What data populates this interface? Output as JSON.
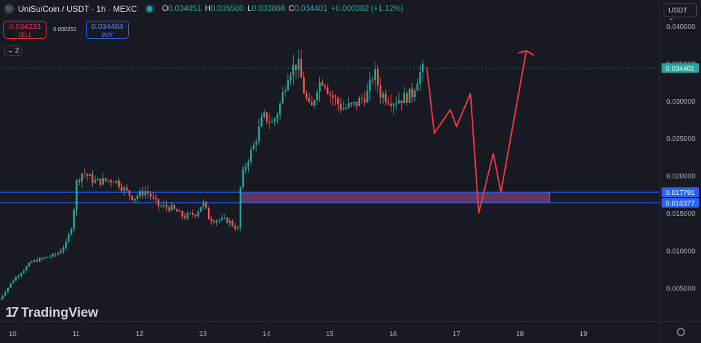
{
  "header": {
    "coin_icon": "U",
    "symbol": "UniSuiCoin / USDT · 1h · MEXC",
    "ohlc": [
      {
        "k": "O",
        "v": "0.034051"
      },
      {
        "k": "H",
        "v": "0.035500"
      },
      {
        "k": "L",
        "v": "0.033868"
      },
      {
        "k": "C",
        "v": "0.034401"
      },
      {
        "k": "",
        "v": "+0.000382 (+1.12%)"
      }
    ]
  },
  "trade": {
    "sell_price": "0.034233",
    "sell_label": "SELL",
    "spread": "0.000251",
    "buy_price": "0.034484",
    "buy_label": "BUY"
  },
  "indicators_toggle": "2",
  "currency": "USDT",
  "logo_text": "TradingView",
  "colors": {
    "up": "#26a69a",
    "down": "#ef5350",
    "line": "#2962ff",
    "zone": "#7b3f73",
    "arrow": "#f23645",
    "bg": "#171a23"
  },
  "chart_data": {
    "type": "candlestick",
    "x_ticks": [
      "10",
      "11",
      "12",
      "13",
      "14",
      "15",
      "16",
      "17",
      "18",
      "19"
    ],
    "y_ticks": [
      "0.040000",
      "0.035000",
      "0.030000",
      "0.025000",
      "0.020000",
      "0.015000",
      "0.010000",
      "0.005000"
    ],
    "ylim": [
      0.0005,
      0.0435
    ],
    "xlim_days": [
      9.8,
      20.2
    ],
    "last_price": 0.034401,
    "last_price_label": "0.034401",
    "levels": [
      {
        "value": 0.017791,
        "label": "0.017791"
      },
      {
        "value": 0.016377,
        "label": "0.016377"
      }
    ],
    "zone": {
      "top": 0.017791,
      "bottom": 0.016377,
      "x_start": 13.6,
      "x_end": 18.47
    },
    "projection": [
      [
        16.53,
        0.0345
      ],
      [
        16.65,
        0.0257
      ],
      [
        16.9,
        0.0288
      ],
      [
        17.0,
        0.0266
      ],
      [
        17.22,
        0.031
      ],
      [
        17.35,
        0.015
      ],
      [
        17.58,
        0.023
      ],
      [
        17.7,
        0.0178
      ],
      [
        18.1,
        0.0367
      ],
      [
        18.22,
        0.0361
      ]
    ],
    "anchors": [
      [
        9.8,
        0.0035
      ],
      [
        10.0,
        0.006
      ],
      [
        10.3,
        0.0085
      ],
      [
        10.7,
        0.0095
      ],
      [
        10.85,
        0.011
      ],
      [
        10.95,
        0.014
      ],
      [
        11.0,
        0.019
      ],
      [
        11.1,
        0.0205
      ],
      [
        11.3,
        0.0192
      ],
      [
        11.6,
        0.0195
      ],
      [
        11.9,
        0.017
      ],
      [
        12.1,
        0.018
      ],
      [
        12.3,
        0.016
      ],
      [
        12.5,
        0.0157
      ],
      [
        12.7,
        0.0145
      ],
      [
        12.9,
        0.015
      ],
      [
        13.0,
        0.0165
      ],
      [
        13.1,
        0.0142
      ],
      [
        13.4,
        0.014
      ],
      [
        13.55,
        0.0128
      ],
      [
        13.6,
        0.0195
      ],
      [
        13.7,
        0.022
      ],
      [
        13.8,
        0.024
      ],
      [
        13.95,
        0.028
      ],
      [
        14.1,
        0.027
      ],
      [
        14.2,
        0.029
      ],
      [
        14.35,
        0.034
      ],
      [
        14.5,
        0.035
      ],
      [
        14.6,
        0.031
      ],
      [
        14.7,
        0.0285
      ],
      [
        14.8,
        0.032
      ],
      [
        14.9,
        0.033
      ],
      [
        15.0,
        0.031
      ],
      [
        15.2,
        0.029
      ],
      [
        15.4,
        0.0295
      ],
      [
        15.6,
        0.031
      ],
      [
        15.7,
        0.034
      ],
      [
        15.8,
        0.031
      ],
      [
        16.0,
        0.03
      ],
      [
        16.2,
        0.0305
      ],
      [
        16.3,
        0.031
      ],
      [
        16.4,
        0.0335
      ],
      [
        16.5,
        0.0344
      ]
    ]
  }
}
